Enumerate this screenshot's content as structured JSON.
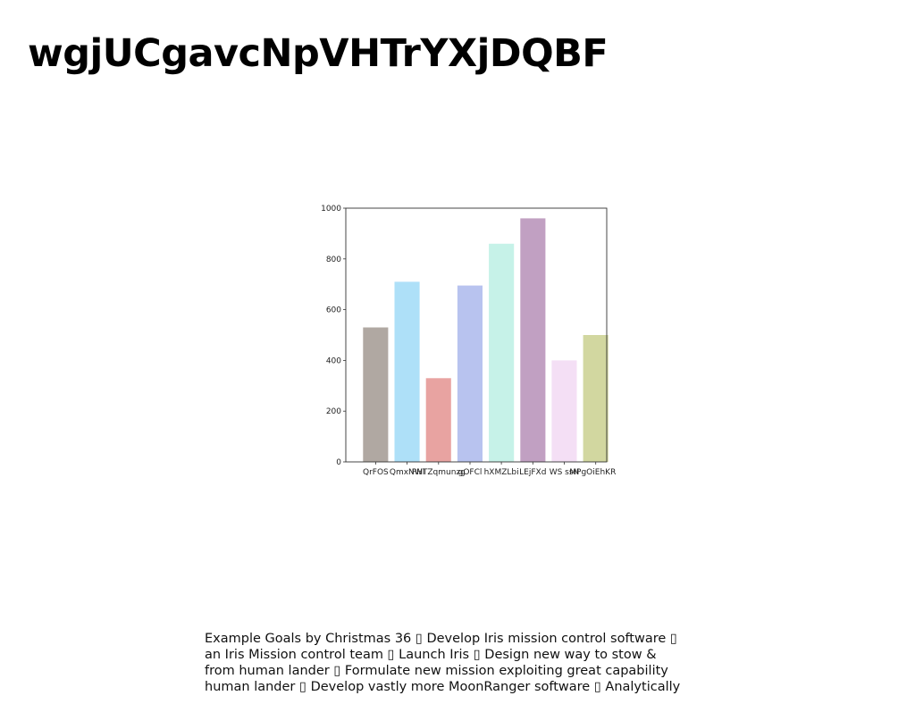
{
  "title": "wgjUCgavcNpVHTrYXjDQBF",
  "chart_data": {
    "type": "bar",
    "categories": [
      "QrFOS",
      "QmxNWI",
      "PHTZqmunzg",
      "gOFCl",
      "hXMZLbi",
      "LEjFXd",
      "WS ssN",
      "MPgOiEhKRH"
    ],
    "values": [
      530,
      710,
      330,
      695,
      860,
      960,
      400,
      500
    ],
    "colors": [
      "#b0a8a2",
      "#aee0f8",
      "#e8a3a1",
      "#b8c3ef",
      "#c6f2e8",
      "#c1a0c2",
      "#f4dff5",
      "#d2d7a0"
    ],
    "yticks": [
      0,
      200,
      400,
      600,
      800,
      1000
    ],
    "ylim": [
      0,
      1000
    ],
    "xlabel": "",
    "ylabel": "",
    "legend": "none",
    "grid": false
  },
  "caption": {
    "lines": [
      "Example Goals by Christmas 36 ▯ Develop Iris mission control software ▯",
      "an Iris Mission control team ▯ Launch Iris ▯ Design new way to stow &",
      "from human lander ▯ Formulate new mission exploiting great capability",
      "human lander ▯ Develop vastly more MoonRanger software ▯ Analytically"
    ]
  }
}
